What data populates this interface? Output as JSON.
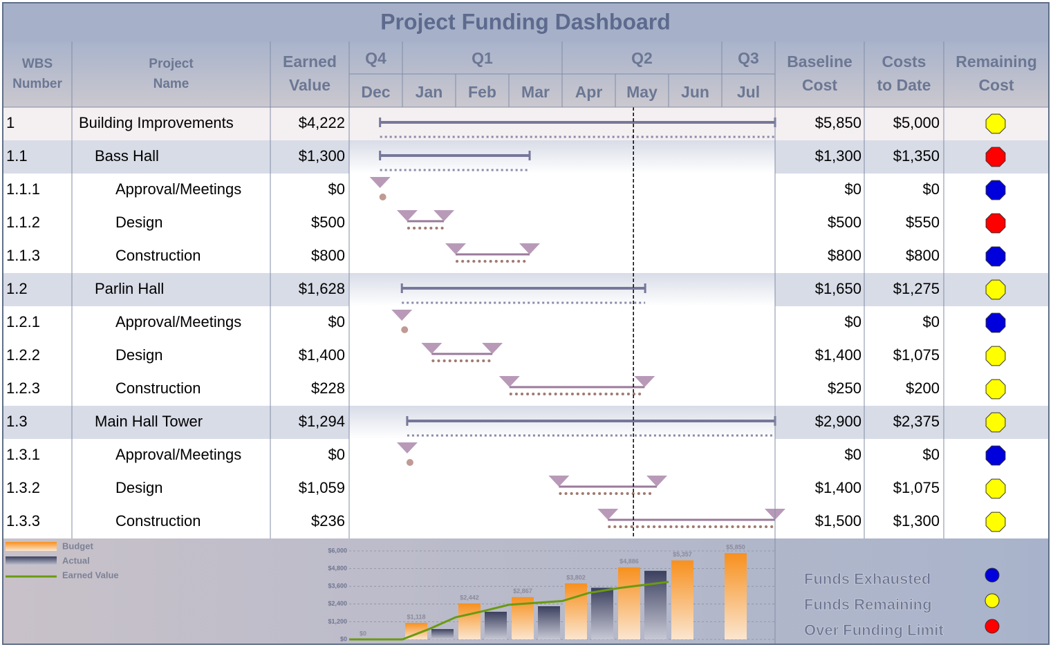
{
  "title": "Project Funding Dashboard",
  "columns": [
    [
      "WBS",
      "Number"
    ],
    [
      "Project",
      "Name"
    ],
    [
      "Earned",
      "Value"
    ],
    [
      "Baseline",
      "Cost"
    ],
    [
      "Costs",
      "to Date"
    ],
    [
      "Remaining",
      "Cost"
    ]
  ],
  "gantt": {
    "quarters": [
      {
        "label": "Q4",
        "months": 1
      },
      {
        "label": "Q1",
        "months": 3
      },
      {
        "label": "Q2",
        "months": 3
      },
      {
        "label": "Q3",
        "months": 1
      }
    ],
    "months": [
      "Dec",
      "Jan",
      "Feb",
      "Mar",
      "Apr",
      "May",
      "Jun",
      "Jul"
    ],
    "status_date": 5.34
  },
  "rows": [
    {
      "wbs": "1",
      "name": "Building Improvements",
      "earned": "$4,222",
      "baseline": "$5,850",
      "costs": "$5,000",
      "status": "#ffff00",
      "start": 0.58,
      "end": 8
    },
    {
      "wbs": "1.1",
      "name": "Bass Hall",
      "earned": "$1,300",
      "baseline": "$1,300",
      "costs": "$1,350",
      "status": "#ff0000",
      "start": 0.58,
      "end": 3.39
    },
    {
      "wbs": "1.1.1",
      "name": "Approval/Meetings",
      "earned": "$0",
      "baseline": "$0",
      "costs": "$0",
      "status": "#0000dd",
      "start": 0.58,
      "end": 0.58
    },
    {
      "wbs": "1.1.2",
      "name": "Design",
      "earned": "$500",
      "baseline": "$500",
      "costs": "$550",
      "status": "#ff0000",
      "start": 1.09,
      "end": 1.78
    },
    {
      "wbs": "1.1.3",
      "name": "Construction",
      "earned": "$800",
      "baseline": "$800",
      "costs": "$800",
      "status": "#0000dd",
      "start": 2.0,
      "end": 3.39
    },
    {
      "wbs": "1.2",
      "name": "Parlin Hall",
      "earned": "$1,628",
      "baseline": "$1,650",
      "costs": "$1,275",
      "status": "#ffff00",
      "start": 0.99,
      "end": 5.56
    },
    {
      "wbs": "1.2.1",
      "name": "Approval/Meetings",
      "earned": "$0",
      "baseline": "$0",
      "costs": "$0",
      "status": "#0000dd",
      "start": 0.99,
      "end": 0.99
    },
    {
      "wbs": "1.2.2",
      "name": "Design",
      "earned": "$1,400",
      "baseline": "$1,400",
      "costs": "$1,075",
      "status": "#ffff00",
      "start": 1.55,
      "end": 2.69
    },
    {
      "wbs": "1.2.3",
      "name": "Construction",
      "earned": "$228",
      "baseline": "$250",
      "costs": "$200",
      "status": "#ffff00",
      "start": 3.01,
      "end": 5.55
    },
    {
      "wbs": "1.3",
      "name": "Main Hall Tower",
      "earned": "$1,294",
      "baseline": "$2,900",
      "costs": "$2,375",
      "status": "#ffff00",
      "start": 1.09,
      "end": 8
    },
    {
      "wbs": "1.3.1",
      "name": "Approval/Meetings",
      "earned": "$0",
      "baseline": "$0",
      "costs": "$0",
      "status": "#0000dd",
      "start": 1.09,
      "end": 1.09
    },
    {
      "wbs": "1.3.2",
      "name": "Design",
      "earned": "$1,059",
      "baseline": "$1,400",
      "costs": "$1,075",
      "status": "#ffff00",
      "start": 3.94,
      "end": 5.78
    },
    {
      "wbs": "1.3.3",
      "name": "Construction",
      "earned": "$236",
      "baseline": "$1,500",
      "costs": "$1,300",
      "status": "#ffff00",
      "start": 4.86,
      "end": 8
    }
  ],
  "status_legend": [
    {
      "label": "Funds Exhausted",
      "color": "#0000dd"
    },
    {
      "label": "Funds Remaining",
      "color": "#ffff00"
    },
    {
      "label": "Over Funding Limit",
      "color": "#ff0000"
    }
  ],
  "chart_data": {
    "type": "bar",
    "categories": [
      null,
      null,
      null,
      null,
      null,
      null,
      null,
      null
    ],
    "xlim": [
      0,
      8
    ],
    "ylim": [
      0,
      6000
    ],
    "yticks": [
      {
        "value": 0,
        "label": "$0"
      },
      {
        "value": 1200,
        "label": "$1,200"
      },
      {
        "value": 2400,
        "label": "$2,400"
      },
      {
        "value": 3600,
        "label": "$3,600"
      },
      {
        "value": 4800,
        "label": "$4,800"
      },
      {
        "value": 6000,
        "label": "$6,000"
      }
    ],
    "grid": true,
    "series": [
      {
        "name": "Budget",
        "color": "#f7901e",
        "values": [
          0,
          1118,
          2442,
          2867,
          3802,
          4886,
          5357,
          5850
        ],
        "value_labels": [
          "$0",
          "$1,118",
          "$2,442",
          "$2,867",
          "$3,802",
          "$4,886",
          "$5,357",
          "$5,850"
        ]
      },
      {
        "name": "Actual",
        "color": "#3b405e",
        "values": [
          null,
          700,
          1875,
          2250,
          3500,
          4650,
          null,
          null
        ]
      },
      {
        "name": "Earned Value",
        "color": "#6a9a10",
        "type": "line",
        "x": [
          0,
          1,
          1.5,
          2,
          2.5,
          3,
          4,
          4.5,
          5.1,
          6
        ],
        "values": [
          0,
          0,
          700,
          1500,
          1900,
          2350,
          2600,
          3150,
          3500,
          3900
        ]
      }
    ]
  }
}
